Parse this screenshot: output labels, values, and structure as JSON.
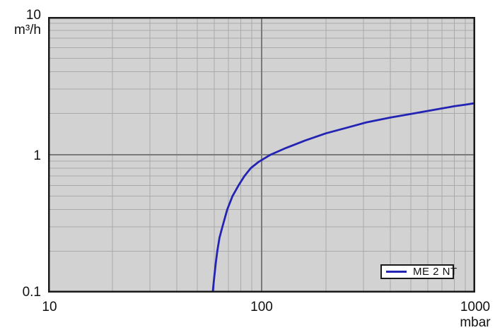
{
  "chart_data": {
    "type": "line",
    "title": "",
    "x_axis": {
      "unit": "mbar",
      "scale": "log",
      "min": 10,
      "max": 1000,
      "ticks": [
        "10",
        "100",
        "1000"
      ],
      "minor_gridlines": [
        20,
        30,
        40,
        50,
        60,
        70,
        80,
        90,
        200,
        300,
        400,
        500,
        600,
        700,
        800,
        900
      ],
      "major_gridlines": [
        100
      ]
    },
    "y_axis": {
      "unit": "m³/h",
      "scale": "log",
      "min": 0.1,
      "max": 10,
      "ticks": [
        "10",
        "1",
        "0.1"
      ],
      "minor_gridlines": [
        0.2,
        0.3,
        0.4,
        0.5,
        0.6,
        0.7,
        0.8,
        0.9,
        2,
        3,
        4,
        5,
        6,
        7,
        8,
        9
      ],
      "major_gridlines": [
        1
      ]
    },
    "legend": {
      "position": "bottom-right",
      "label": "ME 2 NT"
    },
    "series": [
      {
        "name": "ME 2 NT",
        "color": "#2323b4",
        "points": [
          [
            59,
            0.1
          ],
          [
            60,
            0.13
          ],
          [
            61,
            0.165
          ],
          [
            62,
            0.2
          ],
          [
            63.5,
            0.25
          ],
          [
            65.5,
            0.3
          ],
          [
            69,
            0.4
          ],
          [
            73,
            0.5
          ],
          [
            78,
            0.6
          ],
          [
            83,
            0.7
          ],
          [
            89,
            0.8
          ],
          [
            97,
            0.89
          ],
          [
            110,
            1.0
          ],
          [
            130,
            1.12
          ],
          [
            160,
            1.27
          ],
          [
            200,
            1.43
          ],
          [
            250,
            1.57
          ],
          [
            310,
            1.72
          ],
          [
            400,
            1.86
          ],
          [
            500,
            1.98
          ],
          [
            600,
            2.08
          ],
          [
            700,
            2.17
          ],
          [
            800,
            2.25
          ],
          [
            900,
            2.31
          ],
          [
            1000,
            2.37
          ]
        ]
      }
    ]
  },
  "colors": {
    "page_bg": "#ffffff",
    "plot_bg": "#d2d2d2",
    "grid_minor": "#a9a9a9",
    "grid_major": "#7a7a7a",
    "border": "#1a1a1a",
    "curve": "#2323b4",
    "text": "#111111",
    "legend_bg": "#ffffff"
  }
}
